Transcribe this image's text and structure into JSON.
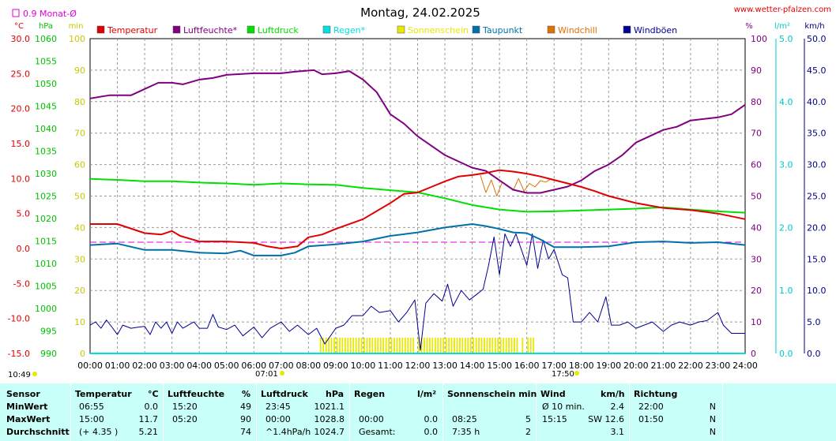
{
  "header": {
    "title": "Montag, 24.02.2025",
    "site": "www.wetter-pfalzen.com",
    "monthly_avg_label": "0.9 Monat-Ø",
    "time_left": "10:49",
    "sunrise": "07:01",
    "sunset": "17:50"
  },
  "colors": {
    "temperature": "#e00000",
    "humidity": "#800080",
    "pressure": "#00e000",
    "rain": "#00e0e0",
    "sunshine": "#e8e800",
    "dewpoint": "#0070a8",
    "windchill": "#e07000",
    "gusts": "#000090",
    "monthly_avg": "#e000e0",
    "stats_bg": "#c8fff8"
  },
  "chart_data": {
    "type": "line",
    "xlabel": "",
    "x_ticks": [
      "00:00",
      "01:00",
      "02:00",
      "03:00",
      "04:00",
      "05:00",
      "06:00",
      "07:00",
      "08:00",
      "09:00",
      "10:00",
      "11:00",
      "12:00",
      "13:00",
      "14:00",
      "15:00",
      "16:00",
      "17:00",
      "18:00",
      "19:00",
      "20:00",
      "21:00",
      "22:00",
      "23:00",
      "24:00"
    ],
    "legend": [
      "Temperatur",
      "Luftfeuchte*",
      "Luftdruck",
      "Regen*",
      "Sonnenschein",
      "Taupunkt",
      "Windchill",
      "Windböen"
    ],
    "axes": {
      "temp": {
        "unit": "°C",
        "range": [
          -15,
          30
        ],
        "ticks": [
          "30.0",
          "25.0",
          "20.0",
          "15.0",
          "10.0",
          "5.0",
          "0.0",
          "-5.0",
          "-10.0",
          "-15.0"
        ]
      },
      "pressure": {
        "unit": "hPa",
        "range": [
          990,
          1060
        ],
        "ticks": [
          "1060",
          "1055",
          "1050",
          "1045",
          "1040",
          "1035",
          "1030",
          "1025",
          "1020",
          "1015",
          "1010",
          "1005",
          "1000",
          "995",
          "990"
        ]
      },
      "sun": {
        "unit": "min",
        "range": [
          0,
          100
        ],
        "ticks": [
          "100",
          "90",
          "80",
          "70",
          "60",
          "50",
          "40",
          "30",
          "20",
          "10",
          "0"
        ]
      },
      "humidity": {
        "unit": "%",
        "range": [
          0,
          100
        ],
        "ticks": [
          "100",
          "90",
          "80",
          "70",
          "60",
          "50",
          "40",
          "30",
          "20",
          "10",
          "0"
        ]
      },
      "rain": {
        "unit": "l/m²",
        "range": [
          0,
          5
        ],
        "ticks": [
          "5.0",
          "4.0",
          "3.0",
          "2.0",
          "1.0",
          "0.0"
        ]
      },
      "wind": {
        "unit": "km/h",
        "range": [
          0,
          50
        ],
        "ticks": [
          "50.0",
          "45.0",
          "40.0",
          "35.0",
          "30.0",
          "25.0",
          "20.0",
          "15.0",
          "10.0",
          "5.0",
          "0.0"
        ]
      }
    },
    "monthly_avg_temp": 0.9,
    "series": [
      {
        "name": "Temperatur",
        "axis": "temp",
        "points": [
          [
            0,
            3.5
          ],
          [
            1,
            3.5
          ],
          [
            2,
            2.2
          ],
          [
            2.6,
            2.0
          ],
          [
            3,
            2.5
          ],
          [
            3.3,
            1.8
          ],
          [
            4,
            1.0
          ],
          [
            5,
            1.0
          ],
          [
            6,
            0.8
          ],
          [
            6.5,
            0.3
          ],
          [
            7,
            0.0
          ],
          [
            7.6,
            0.3
          ],
          [
            8,
            1.6
          ],
          [
            8.5,
            2.0
          ],
          [
            9,
            2.8
          ],
          [
            10,
            4.2
          ],
          [
            11,
            6.5
          ],
          [
            11.5,
            7.8
          ],
          [
            12,
            8.0
          ],
          [
            12.5,
            8.8
          ],
          [
            13,
            9.6
          ],
          [
            13.5,
            10.3
          ],
          [
            14,
            10.5
          ],
          [
            14.5,
            10.8
          ],
          [
            15,
            11.2
          ],
          [
            15.5,
            11.0
          ],
          [
            16,
            10.7
          ],
          [
            16.5,
            10.3
          ],
          [
            17,
            9.8
          ],
          [
            17.5,
            9.3
          ],
          [
            18,
            8.8
          ],
          [
            18.5,
            8.2
          ],
          [
            19,
            7.5
          ],
          [
            20,
            6.5
          ],
          [
            21,
            5.8
          ],
          [
            22,
            5.5
          ],
          [
            23,
            5.0
          ],
          [
            24,
            4.2
          ]
        ]
      },
      {
        "name": "Luftfeuchte*",
        "axis": "humidity",
        "points": [
          [
            0,
            81
          ],
          [
            0.7,
            82
          ],
          [
            1.5,
            82
          ],
          [
            2,
            84
          ],
          [
            2.5,
            86
          ],
          [
            3,
            86
          ],
          [
            3.4,
            85.5
          ],
          [
            4,
            87
          ],
          [
            4.5,
            87.5
          ],
          [
            5,
            88.5
          ],
          [
            6,
            89
          ],
          [
            7,
            89
          ],
          [
            7.5,
            89.5
          ],
          [
            8.2,
            90
          ],
          [
            8.5,
            88.7
          ],
          [
            9,
            89
          ],
          [
            9.5,
            89.7
          ],
          [
            10,
            87
          ],
          [
            10.5,
            83
          ],
          [
            11,
            76
          ],
          [
            11.5,
            73
          ],
          [
            12,
            69
          ],
          [
            12.5,
            66
          ],
          [
            13,
            63
          ],
          [
            13.5,
            61
          ],
          [
            14,
            59
          ],
          [
            14.5,
            58
          ],
          [
            15,
            55
          ],
          [
            15.5,
            52
          ],
          [
            16,
            51
          ],
          [
            16.5,
            51
          ],
          [
            17,
            52
          ],
          [
            17.5,
            53
          ],
          [
            18,
            55
          ],
          [
            18.5,
            58
          ],
          [
            19,
            60
          ],
          [
            19.5,
            63
          ],
          [
            20,
            67
          ],
          [
            20.5,
            69
          ],
          [
            21,
            71
          ],
          [
            21.5,
            72
          ],
          [
            22,
            74
          ],
          [
            23,
            75
          ],
          [
            23.5,
            76
          ],
          [
            24,
            79
          ]
        ]
      },
      {
        "name": "Luftdruck",
        "axis": "pressure",
        "points": [
          [
            0,
            1028.8
          ],
          [
            1,
            1028.6
          ],
          [
            2,
            1028.3
          ],
          [
            3,
            1028.3
          ],
          [
            4,
            1028.0
          ],
          [
            5,
            1027.8
          ],
          [
            6,
            1027.5
          ],
          [
            7,
            1027.8
          ],
          [
            8,
            1027.6
          ],
          [
            9,
            1027.5
          ],
          [
            10,
            1026.8
          ],
          [
            11,
            1026.3
          ],
          [
            12,
            1025.8
          ],
          [
            13,
            1024.5
          ],
          [
            14,
            1023.0
          ],
          [
            15,
            1022.0
          ],
          [
            16,
            1021.5
          ],
          [
            17,
            1021.6
          ],
          [
            18,
            1021.8
          ],
          [
            19,
            1022.0
          ],
          [
            20,
            1022.2
          ],
          [
            21,
            1022.5
          ],
          [
            22,
            1022.0
          ],
          [
            23,
            1021.6
          ],
          [
            24,
            1021.3
          ]
        ]
      },
      {
        "name": "Regen*",
        "axis": "rain",
        "points": [
          [
            0,
            0
          ],
          [
            24,
            0
          ]
        ]
      },
      {
        "name": "Taupunkt",
        "axis": "temp",
        "points": [
          [
            0,
            0.5
          ],
          [
            1,
            0.7
          ],
          [
            2,
            -0.2
          ],
          [
            3,
            -0.2
          ],
          [
            4,
            -0.6
          ],
          [
            5,
            -0.7
          ],
          [
            5.5,
            -0.3
          ],
          [
            6,
            -1.0
          ],
          [
            7,
            -1.0
          ],
          [
            7.5,
            -0.6
          ],
          [
            8,
            0.3
          ],
          [
            9,
            0.6
          ],
          [
            10,
            1.0
          ],
          [
            11,
            1.8
          ],
          [
            12,
            2.3
          ],
          [
            13,
            3.0
          ],
          [
            14,
            3.5
          ],
          [
            14.5,
            3.2
          ],
          [
            15,
            2.8
          ],
          [
            15.5,
            2.3
          ],
          [
            16,
            2.2
          ],
          [
            16.5,
            1.3
          ],
          [
            17,
            0.2
          ],
          [
            18,
            0.2
          ],
          [
            19,
            0.3
          ],
          [
            20,
            0.9
          ],
          [
            21,
            1.0
          ],
          [
            22,
            0.8
          ],
          [
            23,
            0.9
          ],
          [
            24,
            0.5
          ]
        ]
      },
      {
        "name": "Windchill",
        "axis": "temp",
        "points": [
          [
            14.3,
            10.5
          ],
          [
            14.5,
            8.0
          ],
          [
            14.7,
            9.8
          ],
          [
            14.9,
            7.5
          ],
          [
            15.1,
            9.5
          ],
          [
            15.3,
            9.0
          ],
          [
            15.5,
            8.3
          ],
          [
            15.7,
            10.0
          ],
          [
            15.9,
            8.2
          ],
          [
            16.1,
            9.3
          ],
          [
            16.3,
            8.8
          ],
          [
            16.5,
            9.7
          ],
          [
            16.7,
            9.5
          ],
          [
            16.9,
            10.0
          ]
        ]
      },
      {
        "name": "Windböen",
        "axis": "wind",
        "points": [
          [
            0,
            4.5
          ],
          [
            0.2,
            5.0
          ],
          [
            0.4,
            4.0
          ],
          [
            0.6,
            5.3
          ],
          [
            0.8,
            4.2
          ],
          [
            1,
            3.0
          ],
          [
            1.2,
            4.5
          ],
          [
            1.5,
            4.0
          ],
          [
            1.8,
            4.2
          ],
          [
            2,
            4.3
          ],
          [
            2.2,
            3.0
          ],
          [
            2.4,
            5.0
          ],
          [
            2.6,
            4.0
          ],
          [
            2.8,
            5.0
          ],
          [
            3,
            3.2
          ],
          [
            3.2,
            5.0
          ],
          [
            3.4,
            4.0
          ],
          [
            3.6,
            4.5
          ],
          [
            3.8,
            5.0
          ],
          [
            4,
            4.0
          ],
          [
            4.3,
            4.0
          ],
          [
            4.5,
            6.2
          ],
          [
            4.7,
            4.2
          ],
          [
            5,
            3.8
          ],
          [
            5.3,
            4.5
          ],
          [
            5.6,
            2.8
          ],
          [
            6,
            4.2
          ],
          [
            6.3,
            2.5
          ],
          [
            6.6,
            4.0
          ],
          [
            7,
            5.0
          ],
          [
            7.3,
            3.5
          ],
          [
            7.6,
            4.5
          ],
          [
            8,
            3.0
          ],
          [
            8.3,
            4.0
          ],
          [
            8.6,
            1.5
          ],
          [
            9,
            4.0
          ],
          [
            9.3,
            4.5
          ],
          [
            9.6,
            6.0
          ],
          [
            10,
            6.0
          ],
          [
            10.3,
            7.5
          ],
          [
            10.6,
            6.5
          ],
          [
            11,
            6.8
          ],
          [
            11.3,
            5.0
          ],
          [
            11.6,
            6.5
          ],
          [
            11.9,
            8.5
          ],
          [
            12.1,
            0.5
          ],
          [
            12.3,
            8.0
          ],
          [
            12.6,
            9.5
          ],
          [
            12.9,
            8.3
          ],
          [
            13.1,
            11.0
          ],
          [
            13.3,
            7.5
          ],
          [
            13.6,
            10.0
          ],
          [
            13.9,
            8.5
          ],
          [
            14.2,
            9.5
          ],
          [
            14.4,
            10.2
          ],
          [
            14.6,
            14.0
          ],
          [
            14.8,
            18.5
          ],
          [
            15.0,
            12.5
          ],
          [
            15.2,
            19.0
          ],
          [
            15.4,
            17.0
          ],
          [
            15.6,
            19.0
          ],
          [
            15.8,
            16.5
          ],
          [
            16.0,
            14.0
          ],
          [
            16.2,
            19.0
          ],
          [
            16.4,
            13.5
          ],
          [
            16.6,
            18.0
          ],
          [
            16.8,
            15.0
          ],
          [
            17.0,
            16.5
          ],
          [
            17.3,
            12.5
          ],
          [
            17.5,
            12.0
          ],
          [
            17.7,
            5.0
          ],
          [
            18.0,
            5.0
          ],
          [
            18.3,
            6.5
          ],
          [
            18.6,
            5.0
          ],
          [
            18.9,
            9.0
          ],
          [
            19.1,
            4.5
          ],
          [
            19.4,
            4.5
          ],
          [
            19.7,
            5.0
          ],
          [
            20,
            4.0
          ],
          [
            20.3,
            4.5
          ],
          [
            20.6,
            5.0
          ],
          [
            21,
            3.5
          ],
          [
            21.3,
            4.5
          ],
          [
            21.6,
            5.0
          ],
          [
            22,
            4.5
          ],
          [
            22.3,
            5.0
          ],
          [
            22.6,
            5.2
          ],
          [
            23,
            6.5
          ],
          [
            23.2,
            4.5
          ],
          [
            23.5,
            3.2
          ],
          [
            24,
            3.2
          ]
        ]
      }
    ],
    "sunshine_bars": [
      [
        8.42,
        5
      ],
      [
        16.25,
        5
      ]
    ],
    "sunshine_gaps": [
      [
        11.9,
        12.0
      ],
      [
        15.65,
        15.75
      ],
      [
        15.9,
        16.0
      ]
    ]
  },
  "stats": {
    "headers": {
      "sensor": "Sensor",
      "temp": "Temperatur",
      "temp_unit": "°C",
      "hum": "Luftfeuchte",
      "hum_unit": "%",
      "press": "Luftdruck",
      "press_unit": "hPa",
      "rain": "Regen",
      "rain_unit": "l/m²",
      "sun": "Sonnenschein min",
      "wind": "Wind",
      "wind_unit": "km/h",
      "dir": "Richtung"
    },
    "rows": [
      {
        "label": "MinWert",
        "temp_time": "06:55",
        "temp_val": "0.0",
        "hum_time": "15:20",
        "hum_val": "49",
        "press_time": "23:45",
        "press_val": "1021.1",
        "rain_time": "",
        "rain_val": "",
        "sun_time": "",
        "sun_val": "",
        "wind_time": "Ø 10 min.",
        "wind_val": "2.4",
        "dir_time": "22:00",
        "dir_val": "N"
      },
      {
        "label": "MaxWert",
        "temp_time": "15:00",
        "temp_val": "11.7",
        "hum_time": "05:20",
        "hum_val": "90",
        "press_time": "00:00",
        "press_val": "1028.8",
        "rain_time": "00:00",
        "rain_val": "0.0",
        "sun_time": "08:25",
        "sun_val": "5",
        "wind_time": "15:15",
        "wind_val": "SW 12.6",
        "dir_time": "01:50",
        "dir_val": "N"
      },
      {
        "label": "Durchschnitt",
        "temp_time": "(+ 4.35 )",
        "temp_val": "5.21",
        "hum_time": "",
        "hum_val": "74",
        "press_time": "^1.4hPa/h",
        "press_val": "1024.7",
        "rain_time": "Gesamt:",
        "rain_val": "0.0",
        "sun_time": "7:35 h",
        "sun_val": "2",
        "wind_time": "",
        "wind_val": "3.1",
        "dir_time": "",
        "dir_val": "N"
      }
    ]
  }
}
